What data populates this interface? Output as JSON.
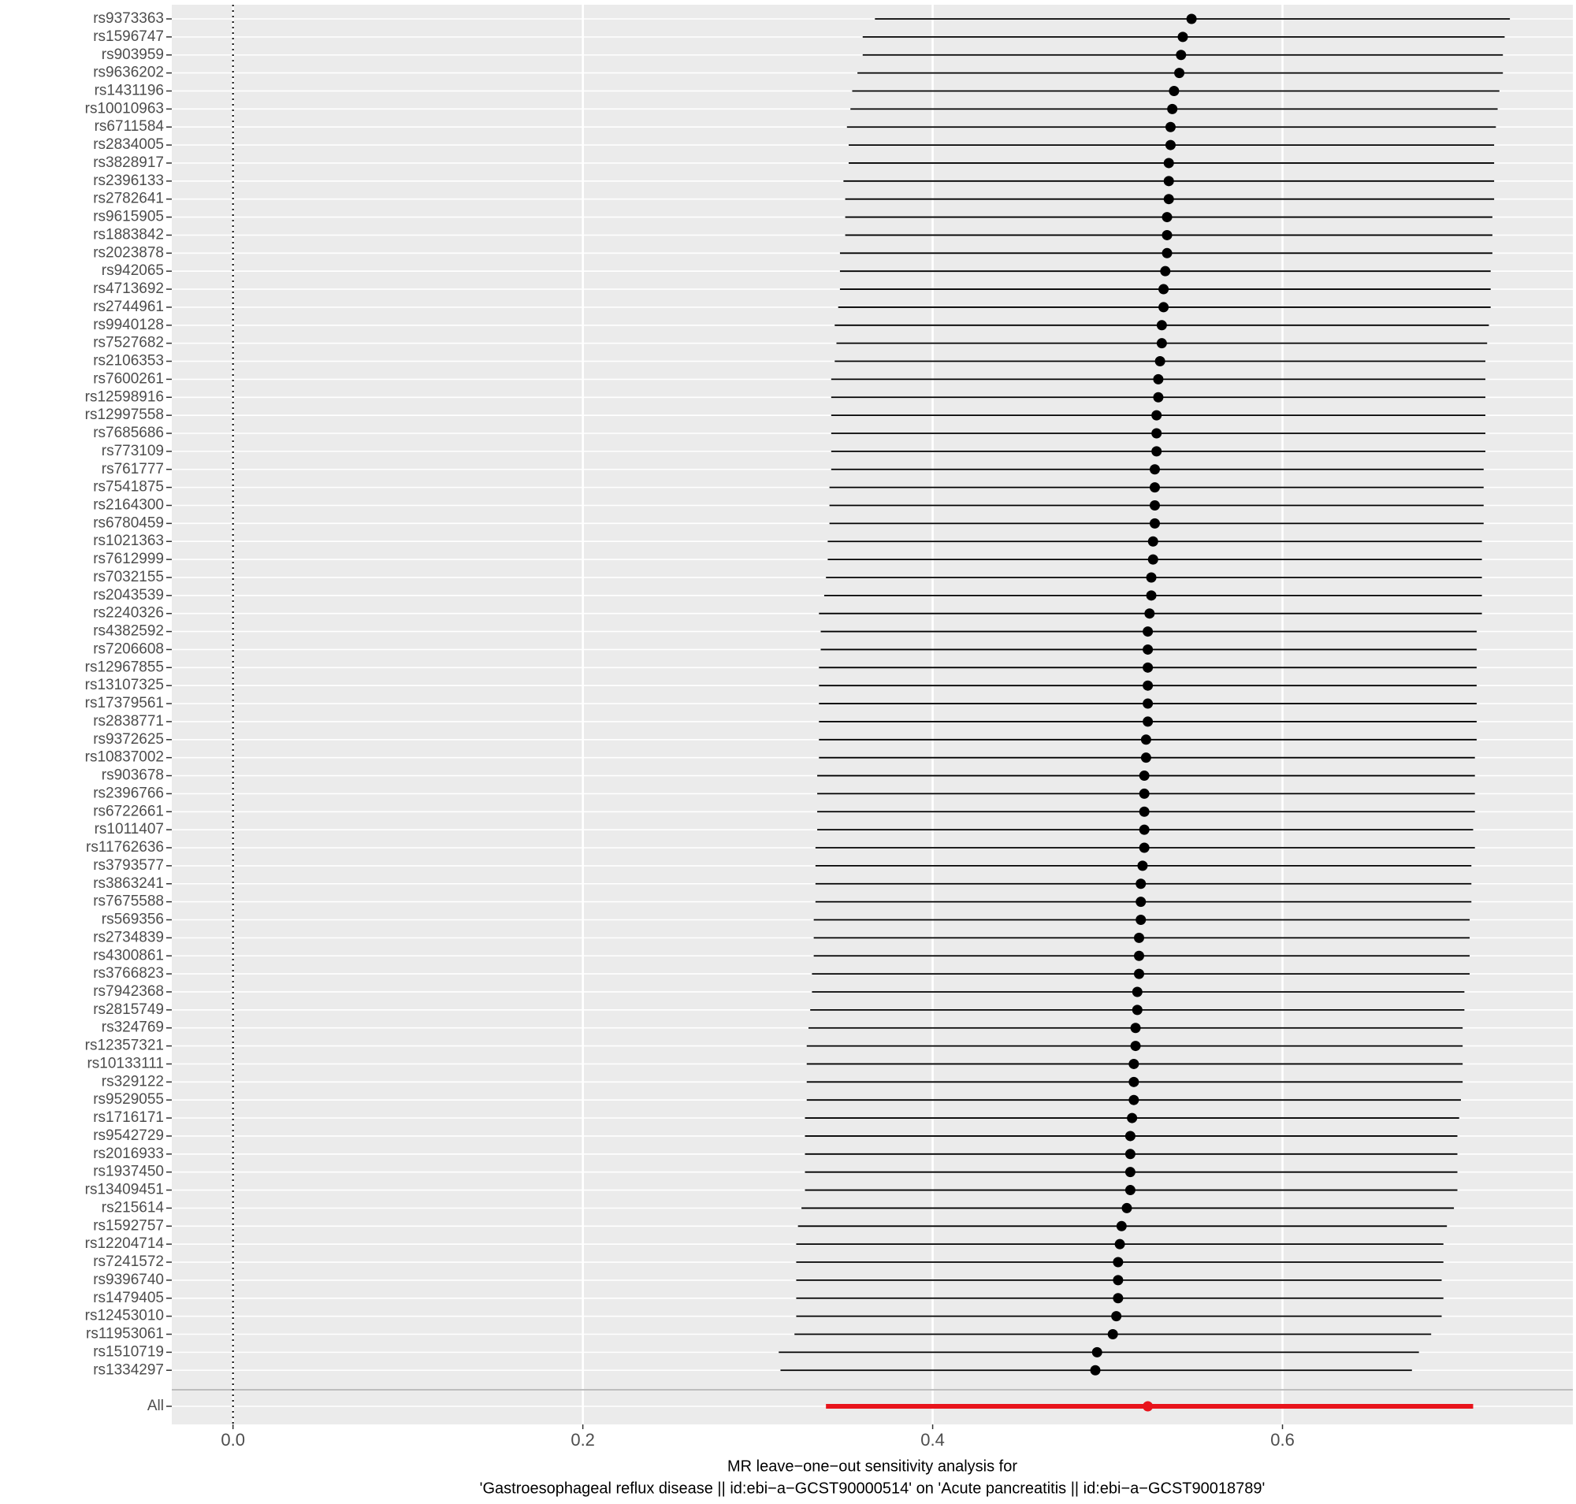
{
  "chart_data": {
    "type": "forest",
    "title_lines": [
      "MR leave−one−out sensitivity analysis for",
      "'Gastroesophageal reflux disease || id:ebi−a−GCST90000514' on 'Acute pancreatitis || id:ebi−a−GCST90018789'"
    ],
    "categories": [
      "rs9373363",
      "rs1596747",
      "rs903959",
      "rs9636202",
      "rs1431196",
      "rs10010963",
      "rs6711584",
      "rs2834005",
      "rs3828917",
      "rs2396133",
      "rs2782641",
      "rs9615905",
      "rs1883842",
      "rs2023878",
      "rs942065",
      "rs4713692",
      "rs2744961",
      "rs9940128",
      "rs7527682",
      "rs2106353",
      "rs7600261",
      "rs12598916",
      "rs12997558",
      "rs7685686",
      "rs773109",
      "rs761777",
      "rs7541875",
      "rs2164300",
      "rs6780459",
      "rs1021363",
      "rs7612999",
      "rs7032155",
      "rs2043539",
      "rs2240326",
      "rs4382592",
      "rs7206608",
      "rs12967855",
      "rs13107325",
      "rs17379561",
      "rs2838771",
      "rs9372625",
      "rs10837002",
      "rs903678",
      "rs2396766",
      "rs6722661",
      "rs1011407",
      "rs11762636",
      "rs3793577",
      "rs3863241",
      "rs7675588",
      "rs569356",
      "rs2734839",
      "rs4300861",
      "rs3766823",
      "rs7942368",
      "rs2815749",
      "rs324769",
      "rs12357321",
      "rs10133111",
      "rs329122",
      "rs9529055",
      "rs1716171",
      "rs9542729",
      "rs2016933",
      "rs1937450",
      "rs13409451",
      "rs215614",
      "rs1592757",
      "rs12204714",
      "rs7241572",
      "rs9396740",
      "rs1479405",
      "rs12453010",
      "rs11953061",
      "rs1510719",
      "rs1334297",
      "All"
    ],
    "estimates": [
      0.548,
      0.543,
      0.542,
      0.541,
      0.538,
      0.537,
      0.536,
      0.536,
      0.535,
      0.535,
      0.535,
      0.534,
      0.534,
      0.534,
      0.533,
      0.532,
      0.532,
      0.531,
      0.531,
      0.53,
      0.529,
      0.529,
      0.528,
      0.528,
      0.528,
      0.527,
      0.527,
      0.527,
      0.527,
      0.526,
      0.526,
      0.525,
      0.525,
      0.524,
      0.523,
      0.523,
      0.523,
      0.523,
      0.523,
      0.523,
      0.522,
      0.522,
      0.521,
      0.521,
      0.521,
      0.521,
      0.521,
      0.52,
      0.519,
      0.519,
      0.519,
      0.518,
      0.518,
      0.518,
      0.517,
      0.517,
      0.516,
      0.516,
      0.515,
      0.515,
      0.515,
      0.514,
      0.513,
      0.513,
      0.513,
      0.513,
      0.511,
      0.508,
      0.507,
      0.506,
      0.506,
      0.506,
      0.505,
      0.503,
      0.494,
      0.493,
      0.523
    ],
    "lower": [
      0.367,
      0.36,
      0.36,
      0.357,
      0.354,
      0.353,
      0.351,
      0.352,
      0.352,
      0.349,
      0.35,
      0.35,
      0.35,
      0.347,
      0.347,
      0.347,
      0.346,
      0.344,
      0.345,
      0.344,
      0.342,
      0.342,
      0.342,
      0.342,
      0.342,
      0.342,
      0.341,
      0.341,
      0.341,
      0.34,
      0.34,
      0.339,
      0.338,
      0.335,
      0.336,
      0.336,
      0.335,
      0.335,
      0.335,
      0.335,
      0.335,
      0.335,
      0.334,
      0.334,
      0.334,
      0.334,
      0.333,
      0.333,
      0.333,
      0.333,
      0.332,
      0.332,
      0.332,
      0.331,
      0.331,
      0.33,
      0.329,
      0.328,
      0.328,
      0.328,
      0.328,
      0.327,
      0.327,
      0.327,
      0.327,
      0.327,
      0.325,
      0.323,
      0.322,
      0.322,
      0.322,
      0.322,
      0.322,
      0.321,
      0.312,
      0.313,
      0.339
    ],
    "upper": [
      0.73,
      0.727,
      0.726,
      0.726,
      0.724,
      0.723,
      0.722,
      0.721,
      0.721,
      0.721,
      0.721,
      0.72,
      0.72,
      0.72,
      0.719,
      0.719,
      0.719,
      0.718,
      0.717,
      0.716,
      0.716,
      0.716,
      0.716,
      0.716,
      0.716,
      0.715,
      0.715,
      0.715,
      0.715,
      0.714,
      0.714,
      0.714,
      0.714,
      0.714,
      0.711,
      0.711,
      0.711,
      0.711,
      0.711,
      0.711,
      0.711,
      0.71,
      0.71,
      0.71,
      0.71,
      0.709,
      0.71,
      0.708,
      0.708,
      0.708,
      0.707,
      0.707,
      0.707,
      0.707,
      0.704,
      0.704,
      0.703,
      0.703,
      0.703,
      0.703,
      0.702,
      0.701,
      0.7,
      0.7,
      0.7,
      0.7,
      0.698,
      0.694,
      0.692,
      0.692,
      0.691,
      0.692,
      0.691,
      0.685,
      0.678,
      0.674,
      0.709
    ],
    "color": "#000000",
    "summary_color": "#e8141c",
    "reference_line": 0,
    "xlim": [
      -0.035,
      0.766
    ],
    "xticks": [
      {
        "value": 0,
        "label": "0.0"
      },
      0.2,
      0.4,
      0.6
    ],
    "grid": true
  }
}
